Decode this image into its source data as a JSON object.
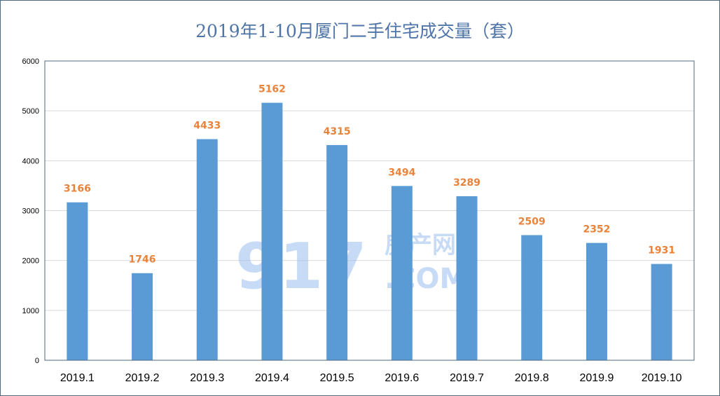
{
  "chart_data": {
    "type": "bar",
    "title": "2019年1-10月厦门二手住宅成交量（套）",
    "categories": [
      "2019.1",
      "2019.2",
      "2019.3",
      "2019.4",
      "2019.5",
      "2019.6",
      "2019.7",
      "2019.8",
      "2019.9",
      "2019.10"
    ],
    "values": [
      3166,
      1746,
      4433,
      5162,
      4315,
      3494,
      3289,
      2509,
      2352,
      1931
    ],
    "ylim": [
      0,
      6000
    ],
    "yticks": [
      0,
      1000,
      2000,
      3000,
      4000,
      5000,
      6000
    ],
    "grid": true,
    "xlabel": "",
    "ylabel": "",
    "bar_color": "#5b9bd5",
    "label_color": "#e9823a",
    "title_color": "#4f74a8"
  },
  "watermark": {
    "number": "917",
    "name": "房产网",
    "domain": ".COM"
  }
}
